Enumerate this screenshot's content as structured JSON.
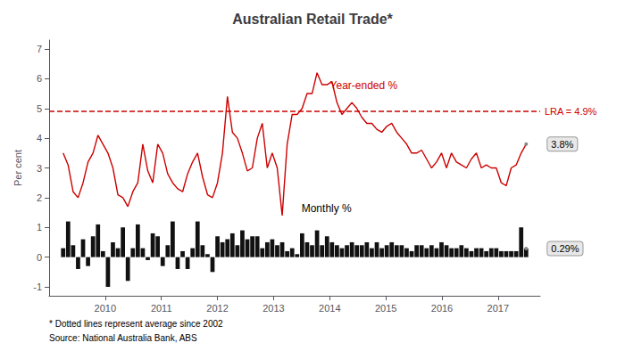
{
  "chart_data": {
    "type": "bar",
    "title": "Australian Retail Trade*",
    "ylabel": "Per cent",
    "x": [
      2009.25,
      2009.3387,
      2009.4274,
      2009.5161,
      2009.6048,
      2009.6935,
      2009.7823,
      2009.871,
      2009.9597,
      2010.0484,
      2010.1371,
      2010.2258,
      2010.3145,
      2010.4032,
      2010.4919,
      2010.5806,
      2010.6694,
      2010.7581,
      2010.8468,
      2010.9355,
      2011.0242,
      2011.1129,
      2011.2016,
      2011.2903,
      2011.379,
      2011.4677,
      2011.5565,
      2011.6452,
      2011.7339,
      2011.8226,
      2011.9113,
      2012.0,
      2012.0887,
      2012.1774,
      2012.2661,
      2012.3548,
      2012.4435,
      2012.5323,
      2012.621,
      2012.7097,
      2012.7984,
      2012.8871,
      2012.9758,
      2013.0645,
      2013.1532,
      2013.2419,
      2013.3306,
      2013.4194,
      2013.5081,
      2013.5968,
      2013.6855,
      2013.7742,
      2013.8629,
      2013.9516,
      2014.0403,
      2014.129,
      2014.2177,
      2014.3065,
      2014.3952,
      2014.4839,
      2014.5726,
      2014.6613,
      2014.75,
      2014.8387,
      2014.9274,
      2015.0161,
      2015.1048,
      2015.1935,
      2015.2823,
      2015.371,
      2015.4597,
      2015.5484,
      2015.6371,
      2015.7258,
      2015.8145,
      2015.9032,
      2015.9919,
      2016.0806,
      2016.1694,
      2016.2581,
      2016.3468,
      2016.4355,
      2016.5242,
      2016.6129,
      2016.7016,
      2016.7903,
      2016.879,
      2016.9677,
      2017.0565,
      2017.1452,
      2017.2339,
      2017.3226,
      2017.4113,
      2017.5
    ],
    "series": [
      {
        "name": "Monthly %",
        "type": "bar",
        "color": "#111111",
        "values": [
          0.3,
          1.2,
          0.4,
          -0.4,
          0.6,
          -0.3,
          0.7,
          1.1,
          0.2,
          -1.0,
          0.5,
          0.3,
          1.0,
          -0.8,
          0.3,
          1.1,
          0.3,
          -0.1,
          0.8,
          0.7,
          -0.3,
          0.4,
          1.2,
          -0.4,
          0.2,
          -0.4,
          0.3,
          1.2,
          0.4,
          0.1,
          -0.5,
          0.7,
          0.5,
          0.6,
          0.8,
          0.4,
          0.9,
          0.6,
          0.7,
          0.7,
          0.3,
          0.5,
          0.6,
          0.4,
          0.5,
          0.2,
          0.3,
          0.1,
          0.8,
          0.5,
          0.4,
          0.9,
          0.4,
          0.7,
          0.5,
          0.4,
          0.3,
          0.4,
          0.5,
          0.4,
          0.4,
          0.5,
          0.3,
          0.5,
          0.3,
          0.4,
          0.5,
          0.4,
          0.4,
          0.3,
          0.2,
          0.4,
          0.4,
          0.3,
          0.4,
          0.3,
          0.5,
          0.4,
          0.3,
          0.3,
          0.4,
          0.3,
          0.2,
          0.3,
          0.3,
          0.2,
          0.3,
          0.3,
          0.2,
          0.2,
          0.2,
          0.2,
          1.0,
          0.29
        ]
      },
      {
        "name": "Year-ended %",
        "type": "line",
        "color": "#cc0000",
        "values": [
          3.5,
          3.1,
          2.2,
          2.0,
          2.5,
          3.2,
          3.5,
          4.1,
          3.8,
          3.5,
          3.0,
          2.1,
          2.0,
          1.7,
          2.2,
          2.5,
          3.8,
          2.9,
          2.5,
          3.8,
          3.5,
          2.8,
          2.5,
          2.3,
          2.2,
          2.8,
          3.2,
          3.5,
          2.7,
          2.1,
          2.0,
          2.5,
          3.5,
          5.4,
          4.2,
          4.0,
          3.5,
          2.9,
          3.0,
          4.0,
          4.5,
          3.0,
          3.5,
          3.0,
          1.4,
          3.8,
          4.8,
          4.8,
          5.0,
          5.5,
          5.5,
          6.2,
          5.8,
          5.8,
          5.9,
          5.2,
          4.8,
          5.0,
          5.2,
          5.0,
          4.7,
          4.5,
          4.5,
          4.3,
          4.2,
          4.4,
          4.5,
          4.2,
          4.0,
          3.8,
          3.5,
          3.5,
          3.6,
          3.3,
          3.0,
          3.2,
          3.5,
          3.0,
          3.5,
          3.2,
          3.1,
          3.0,
          3.3,
          3.5,
          3.0,
          3.1,
          3.0,
          3.0,
          2.5,
          2.4,
          3.0,
          3.1,
          3.5,
          3.8
        ]
      }
    ],
    "xlim": [
      2009.0,
      2017.75
    ],
    "xticks": [
      2010,
      2011,
      2012,
      2013,
      2014,
      2015,
      2016,
      2017
    ],
    "ylim": [
      -1.3,
      7.3
    ],
    "yticks": [
      -1,
      0,
      1,
      2,
      3,
      4,
      5,
      6,
      7
    ],
    "grid": false,
    "annotations": [
      {
        "text": "LRA = 4.9%",
        "y": 4.9,
        "color": "#cc0000",
        "line_style": "dashed"
      },
      {
        "text": "3.8%",
        "x": 2017.5,
        "y": 3.8
      },
      {
        "text": "0.29%",
        "x": 2017.5,
        "y": 0.29
      }
    ],
    "footnotes": [
      "* Dotted lines represent average since 2002",
      "Source: National Australia Bank, ABS"
    ]
  }
}
